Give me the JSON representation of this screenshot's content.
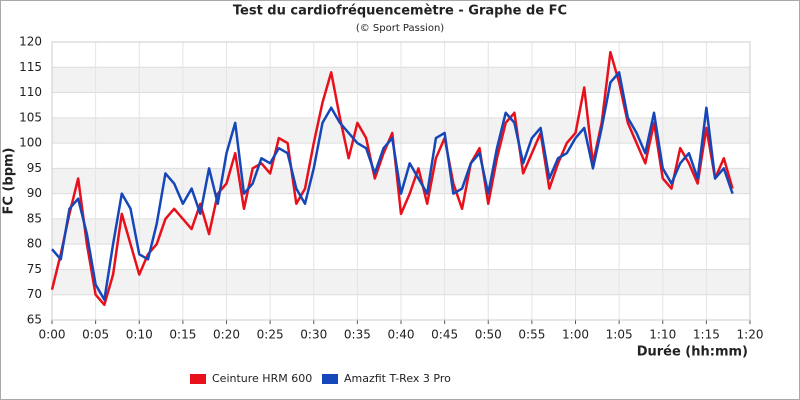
{
  "chart_data": {
    "type": "line",
    "title": "Test du cardiofréquencemètre - Graphe de FC",
    "subtitle": "(© Sport Passion)",
    "x_label": "Durée (hh:mm)",
    "y_label": "FC (bpm)",
    "x": [
      0,
      1,
      2,
      3,
      4,
      5,
      6,
      7,
      8,
      9,
      10,
      11,
      12,
      13,
      14,
      15,
      16,
      17,
      18,
      19,
      20,
      21,
      22,
      23,
      24,
      25,
      26,
      27,
      28,
      29,
      30,
      31,
      32,
      33,
      34,
      35,
      36,
      37,
      38,
      39,
      40,
      41,
      42,
      43,
      44,
      45,
      46,
      47,
      48,
      49,
      50,
      51,
      52,
      53,
      54,
      55,
      56,
      57,
      58,
      59,
      60,
      61,
      62,
      63,
      64,
      65,
      66,
      67,
      68,
      69,
      70,
      71,
      72,
      73,
      74,
      75,
      76,
      77,
      78
    ],
    "series": [
      {
        "name": "Ceinture HRM 600",
        "color": "#e8101a",
        "values": [
          71,
          78,
          86,
          93,
          80,
          70,
          68,
          74,
          86,
          80,
          74,
          78,
          80,
          85,
          87,
          85,
          83,
          88,
          82,
          90,
          92,
          98,
          87,
          95,
          96,
          94,
          101,
          100,
          88,
          91,
          100,
          108,
          114,
          105,
          97,
          104,
          101,
          93,
          98,
          102,
          86,
          90,
          95,
          88,
          97,
          101,
          92,
          87,
          96,
          99,
          88,
          97,
          104,
          106,
          94,
          98,
          102,
          91,
          96,
          100,
          102,
          111,
          96,
          104,
          118,
          112,
          104,
          100,
          96,
          104,
          93,
          91,
          99,
          96,
          92,
          103,
          93,
          97,
          91
        ]
      },
      {
        "name": "Amazfit T-Rex 3 Pro",
        "color": "#1547b8",
        "values": [
          79,
          77,
          87,
          89,
          82,
          72,
          69,
          80,
          90,
          87,
          78,
          77,
          84,
          94,
          92,
          88,
          91,
          86,
          95,
          88,
          98,
          104,
          90,
          92,
          97,
          96,
          99,
          98,
          91,
          88,
          95,
          104,
          107,
          104,
          102,
          100,
          99,
          94,
          99,
          101,
          90,
          96,
          93,
          90,
          101,
          102,
          90,
          91,
          96,
          98,
          90,
          99,
          106,
          104,
          96,
          101,
          103,
          93,
          97,
          98,
          101,
          103,
          95,
          103,
          112,
          114,
          105,
          102,
          98,
          106,
          95,
          92,
          96,
          98,
          93,
          107,
          93,
          95,
          90
        ]
      }
    ],
    "xlim": [
      0,
      80
    ],
    "xticks": [
      {
        "value": 0,
        "label": "0:00"
      },
      {
        "value": 5,
        "label": "0:05"
      },
      {
        "value": 10,
        "label": "0:10"
      },
      {
        "value": 15,
        "label": "0:15"
      },
      {
        "value": 20,
        "label": "0:20"
      },
      {
        "value": 25,
        "label": "0:25"
      },
      {
        "value": 30,
        "label": "0:30"
      },
      {
        "value": 35,
        "label": "0:35"
      },
      {
        "value": 40,
        "label": "0:40"
      },
      {
        "value": 45,
        "label": "0:45"
      },
      {
        "value": 50,
        "label": "0:50"
      },
      {
        "value": 55,
        "label": "0:55"
      },
      {
        "value": 60,
        "label": "1:00"
      },
      {
        "value": 65,
        "label": "1:05"
      },
      {
        "value": 70,
        "label": "1:10"
      },
      {
        "value": 75,
        "label": "1:15"
      },
      {
        "value": 80,
        "label": "1:20"
      }
    ],
    "ylim": [
      65,
      120
    ],
    "yticks": [
      65,
      70,
      75,
      80,
      85,
      90,
      95,
      100,
      105,
      110,
      115,
      120
    ],
    "grid": true,
    "legend": "bottom"
  }
}
